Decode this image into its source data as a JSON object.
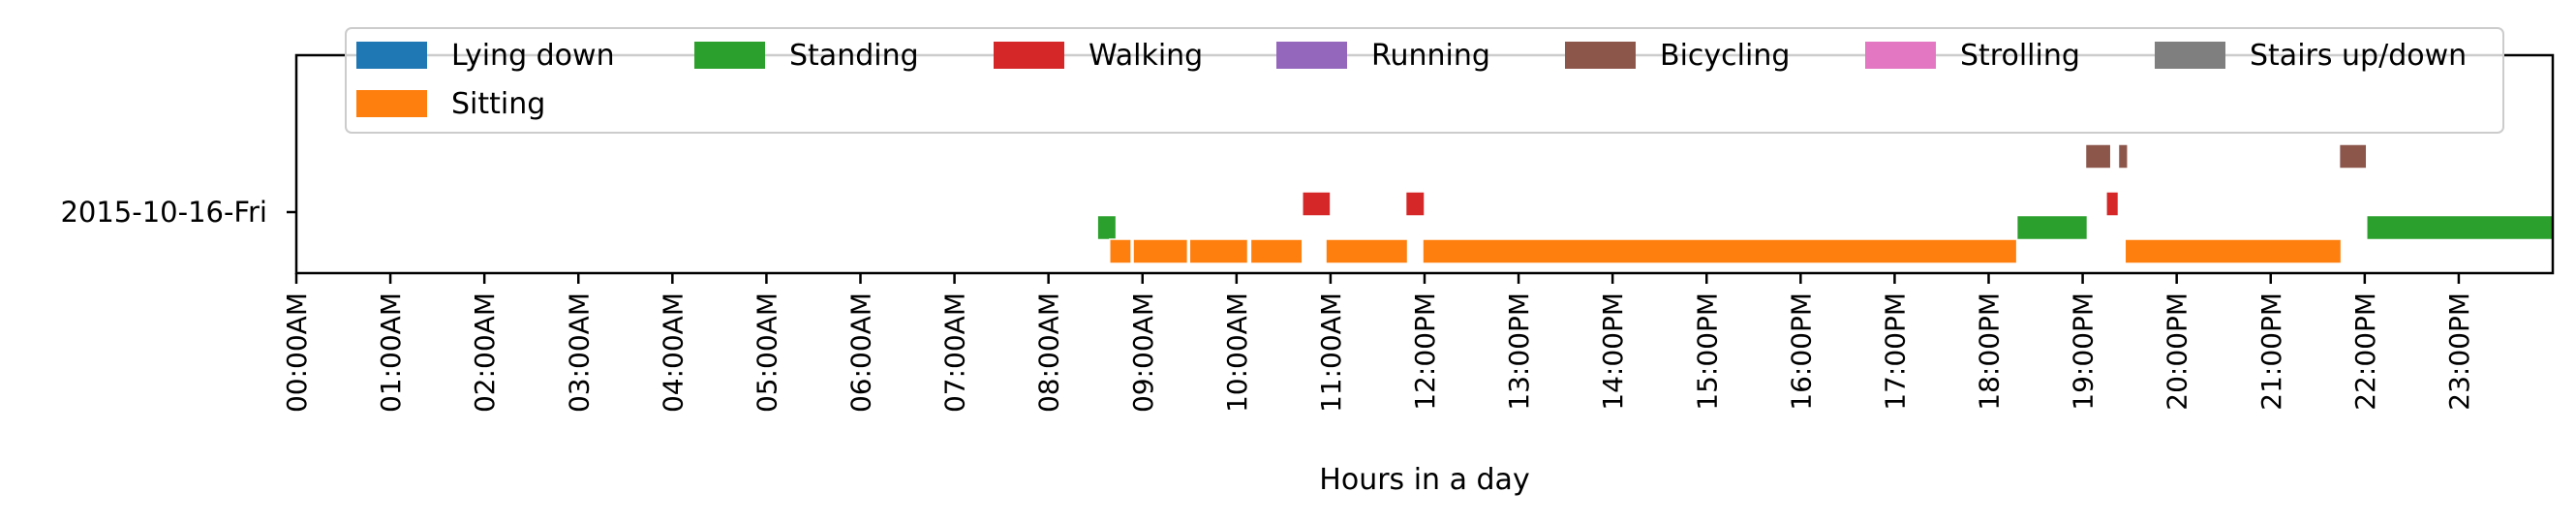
{
  "chart_data": {
    "type": "timeline",
    "row_label": "2015-10-16-Fri",
    "xlabel": "Hours in a day",
    "xlim": [
      0,
      24
    ],
    "x_ticks": [
      "00:00AM",
      "01:00AM",
      "02:00AM",
      "03:00AM",
      "04:00AM",
      "05:00AM",
      "06:00AM",
      "07:00AM",
      "08:00AM",
      "09:00AM",
      "10:00AM",
      "11:00AM",
      "12:00PM",
      "13:00PM",
      "14:00PM",
      "15:00PM",
      "16:00PM",
      "17:00PM",
      "18:00PM",
      "19:00PM",
      "20:00PM",
      "21:00PM",
      "22:00PM",
      "23:00PM"
    ],
    "legend_position": "top",
    "activities": [
      {
        "name": "Lying down",
        "color": "#1f77b4",
        "level": 0
      },
      {
        "name": "Standing",
        "color": "#2ca02c",
        "level": 1
      },
      {
        "name": "Walking",
        "color": "#d62728",
        "level": 2
      },
      {
        "name": "Running",
        "color": "#9467bd",
        "level": 3
      },
      {
        "name": "Bicycling",
        "color": "#8c564b",
        "level": 4
      },
      {
        "name": "Strolling",
        "color": "#e377c2",
        "level": 5
      },
      {
        "name": "Stairs up/down",
        "color": "#7f7f7f",
        "level": 6
      },
      {
        "name": "Sitting",
        "color": "#ff7f0e",
        "level": 0
      }
    ],
    "segments": [
      {
        "activity": "Standing",
        "start": 8.52,
        "end": 8.72
      },
      {
        "activity": "Sitting",
        "start": 8.65,
        "end": 8.88
      },
      {
        "activity": "Sitting",
        "start": 8.9,
        "end": 9.48
      },
      {
        "activity": "Sitting",
        "start": 9.5,
        "end": 10.12
      },
      {
        "activity": "Sitting",
        "start": 10.15,
        "end": 10.7
      },
      {
        "activity": "Walking",
        "start": 10.7,
        "end": 11.0
      },
      {
        "activity": "Sitting",
        "start": 10.95,
        "end": 11.82
      },
      {
        "activity": "Walking",
        "start": 11.8,
        "end": 12.0
      },
      {
        "activity": "Sitting",
        "start": 11.98,
        "end": 18.3
      },
      {
        "activity": "Standing",
        "start": 18.3,
        "end": 19.05
      },
      {
        "activity": "Bicycling",
        "start": 19.03,
        "end": 19.3
      },
      {
        "activity": "Walking",
        "start": 19.25,
        "end": 19.38
      },
      {
        "activity": "Bicycling",
        "start": 19.38,
        "end": 19.48
      },
      {
        "activity": "Sitting",
        "start": 19.45,
        "end": 21.75
      },
      {
        "activity": "Bicycling",
        "start": 21.73,
        "end": 22.02
      },
      {
        "activity": "Standing",
        "start": 22.02,
        "end": 24.0
      }
    ]
  }
}
